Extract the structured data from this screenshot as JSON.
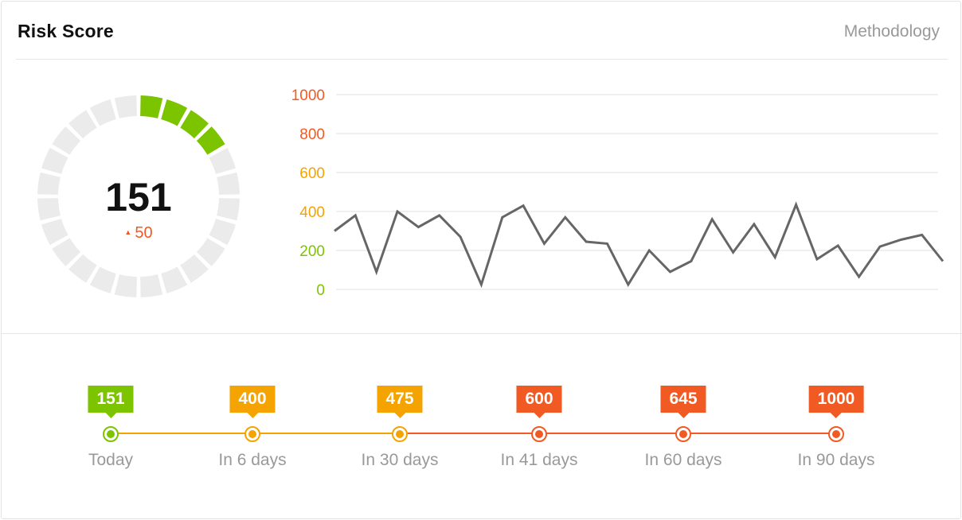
{
  "header": {
    "title": "Risk Score",
    "methodology_label": "Methodology"
  },
  "gauge": {
    "value": "151",
    "delta": "50",
    "delta_icon": "triangle-up-icon",
    "max": 1000,
    "active_color": "#7dc400",
    "track_color": "#ebebeb",
    "delta_color": "#f15a22"
  },
  "chart_data": {
    "type": "line",
    "title": "",
    "xlabel": "",
    "ylabel": "",
    "ylim": [
      0,
      1000
    ],
    "yticks": [
      {
        "label": "1000",
        "value": 1000,
        "color": "#f15a22"
      },
      {
        "label": "800",
        "value": 800,
        "color": "#f15a22"
      },
      {
        "label": "600",
        "value": 600,
        "color": "#f5a300"
      },
      {
        "label": "400",
        "value": 400,
        "color": "#f5a300"
      },
      {
        "label": "200",
        "value": 200,
        "color": "#7dc400"
      },
      {
        "label": "0",
        "value": 0,
        "color": "#7dc400"
      }
    ],
    "grid": true,
    "line_color": "#666666",
    "series": [
      {
        "values": [
          300,
          380,
          90,
          400,
          320,
          380,
          270,
          25,
          370,
          430,
          235,
          370,
          245,
          235,
          25,
          200,
          90,
          145,
          360,
          190,
          335,
          165,
          435,
          155,
          225,
          65,
          220,
          255,
          280,
          145
        ]
      }
    ]
  },
  "timeline": {
    "items": [
      {
        "value": "151",
        "label": "Today",
        "color": "#7dc400"
      },
      {
        "value": "400",
        "label": "In 6 days",
        "color": "#f5a300"
      },
      {
        "value": "475",
        "label": "In 30 days",
        "color": "#f5a300"
      },
      {
        "value": "600",
        "label": "In 41 days",
        "color": "#f15a22"
      },
      {
        "value": "645",
        "label": "In 60 days",
        "color": "#f15a22"
      },
      {
        "value": "1000",
        "label": "In 90 days",
        "color": "#f15a22"
      }
    ]
  }
}
